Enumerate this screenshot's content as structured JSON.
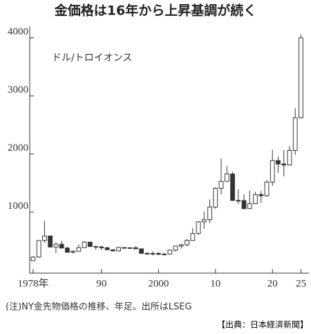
{
  "chart_data": {
    "type": "candlestick",
    "title": "金価格は16年から上昇基調が続く",
    "unit_label": "ドル/トロイオンス",
    "note": "(注)NY金先物価格の推移、年足。出所はLSEG",
    "source": "【出典：日本経済新聞】",
    "color": "#333333",
    "x": [
      1978,
      1979,
      1980,
      1981,
      1982,
      1983,
      1984,
      1985,
      1986,
      1987,
      1988,
      1989,
      1990,
      1991,
      1992,
      1993,
      1994,
      1995,
      1996,
      1997,
      1998,
      1999,
      2000,
      2001,
      2002,
      2003,
      2004,
      2005,
      2006,
      2007,
      2008,
      2009,
      2010,
      2011,
      2012,
      2013,
      2014,
      2015,
      2016,
      2017,
      2018,
      2019,
      2020,
      2021,
      2022,
      2023,
      2024,
      2025
    ],
    "open": [
      165,
      226,
      512,
      590,
      400,
      448,
      382,
      309,
      327,
      390,
      484,
      410,
      401,
      386,
      353,
      333,
      391,
      383,
      387,
      369,
      290,
      288,
      290,
      274,
      279,
      347,
      416,
      438,
      513,
      632,
      834,
      870,
      1088,
      1410,
      1531,
      1658,
      1202,
      1199,
      1061,
      1146,
      1303,
      1282,
      1517,
      1888,
      1829,
      1812,
      2063,
      2625
    ],
    "high": [
      243,
      512,
      850,
      599,
      481,
      509,
      406,
      341,
      442,
      502,
      486,
      418,
      424,
      403,
      360,
      406,
      397,
      396,
      415,
      369,
      313,
      326,
      317,
      293,
      349,
      417,
      455,
      537,
      725,
      841,
      1011,
      1218,
      1431,
      1921,
      1792,
      1694,
      1392,
      1307,
      1375,
      1351,
      1366,
      1557,
      2075,
      1959,
      2070,
      2135,
      2790,
      4060
    ],
    "low": [
      165,
      216,
      474,
      391,
      297,
      374,
      303,
      285,
      327,
      390,
      395,
      355,
      346,
      344,
      330,
      326,
      370,
      372,
      367,
      283,
      273,
      252,
      264,
      256,
      278,
      320,
      375,
      411,
      513,
      608,
      712,
      810,
      1058,
      1308,
      1527,
      1192,
      1142,
      1046,
      1061,
      1146,
      1160,
      1266,
      1451,
      1677,
      1618,
      1804,
      1985,
      2615
    ],
    "close": [
      226,
      512,
      590,
      400,
      448,
      382,
      309,
      327,
      390,
      484,
      410,
      401,
      386,
      353,
      333,
      391,
      383,
      387,
      369,
      290,
      288,
      290,
      274,
      279,
      347,
      416,
      438,
      513,
      632,
      834,
      870,
      1088,
      1410,
      1531,
      1658,
      1202,
      1199,
      1061,
      1146,
      1303,
      1282,
      1517,
      1888,
      1829,
      1812,
      2063,
      2625,
      4000
    ],
    "xlim": [
      1977.4,
      2026.4
    ],
    "xticks": [
      {
        "value": 1978,
        "label": "1978年"
      },
      {
        "value": 1990,
        "label": "90"
      },
      2000,
      {
        "value": 2010,
        "label": "10"
      },
      {
        "value": 2020,
        "label": "20"
      },
      {
        "value": 2025,
        "label": "25"
      }
    ],
    "ylim": [
      -50,
      4200
    ],
    "yticks": [
      1000,
      2000,
      3000,
      4000
    ]
  }
}
